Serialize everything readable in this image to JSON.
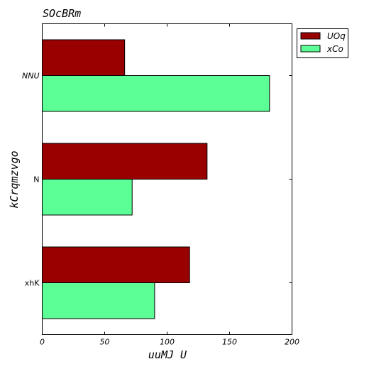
{
  "chart_data": {
    "type": "bar",
    "orientation": "horizontal",
    "title": "SOcBRm",
    "xlabel": "uuMJ  U",
    "ylabel": "kCrqmzvgo",
    "categories": [
      "NNU",
      "N",
      "xhK"
    ],
    "category_label_italic": [
      true,
      false,
      false
    ],
    "series": [
      {
        "name": "UOq",
        "color": "#990000",
        "values": [
          66,
          132,
          118
        ]
      },
      {
        "name": "xCo",
        "color": "#5cff95",
        "values": [
          182,
          72,
          90
        ]
      }
    ],
    "xlim": [
      0,
      200
    ],
    "xticks": [
      0,
      50,
      100,
      150,
      200
    ],
    "grid": false,
    "legend_position": "top-right outside"
  }
}
